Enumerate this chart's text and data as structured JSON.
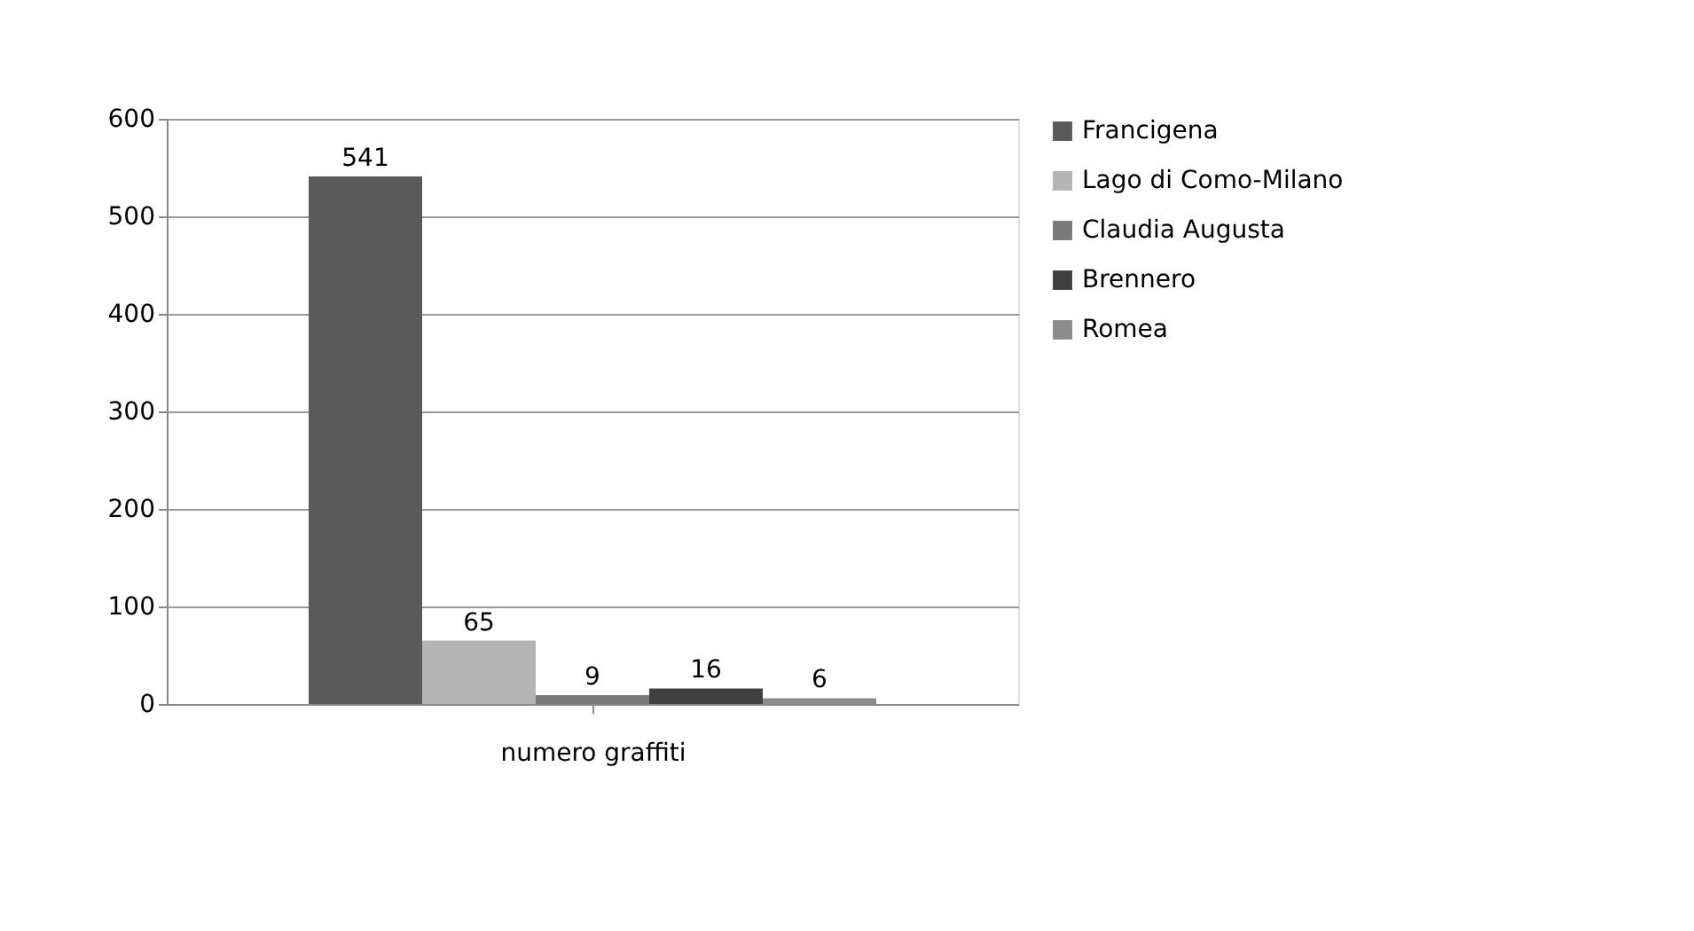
{
  "chart_data": {
    "type": "bar",
    "xlabel": "numero graffiti",
    "categories": [
      null
    ],
    "series": [
      {
        "name": "Francigena",
        "color": "#5a5a5a",
        "values": [
          541
        ]
      },
      {
        "name": "Lago di Como-Milano",
        "color": "#b4b4b4",
        "values": [
          65
        ]
      },
      {
        "name": "Claudia Augusta",
        "color": "#7a7a7a",
        "values": [
          9
        ]
      },
      {
        "name": "Brennero",
        "color": "#404040",
        "values": [
          16
        ]
      },
      {
        "name": "Romea",
        "color": "#8c8c8c",
        "values": [
          6
        ]
      }
    ],
    "ylim": [
      0,
      600
    ],
    "yticks": [
      0,
      100,
      200,
      300,
      400,
      500,
      600
    ],
    "grid": "y",
    "legend": "right",
    "data_labels": true
  }
}
